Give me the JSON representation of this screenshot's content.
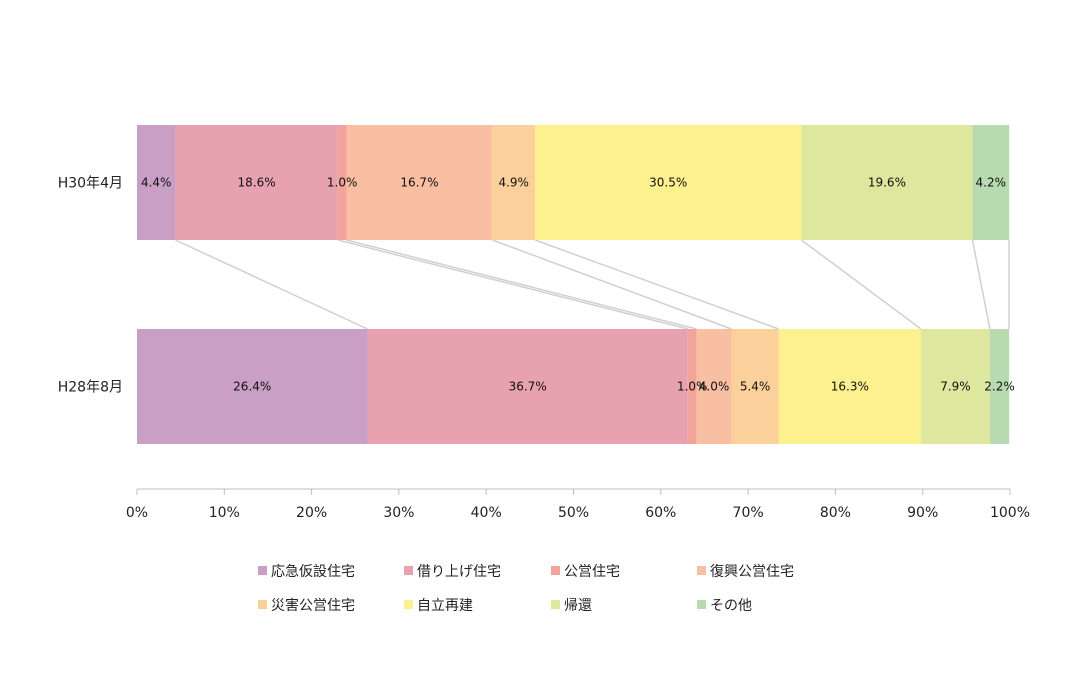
{
  "chart_data": {
    "type": "bar",
    "orientation": "horizontal",
    "stacked": "percent",
    "categories": [
      "H30年4月",
      "H28年8月"
    ],
    "series": [
      {
        "name": "応急仮設住宅",
        "color": "#c99fc6",
        "values": [
          4.4,
          26.4
        ]
      },
      {
        "name": "借り上げ住宅",
        "color": "#e8a1ae",
        "values": [
          18.6,
          36.7
        ]
      },
      {
        "name": "公営住宅",
        "color": "#f2a39b",
        "values": [
          1.0,
          1.0
        ]
      },
      {
        "name": "復興公営住宅",
        "color": "#f9bfa3",
        "values": [
          16.7,
          4.0
        ]
      },
      {
        "name": "災害公営住宅",
        "color": "#fbd09b",
        "values": [
          4.9,
          5.4
        ]
      },
      {
        "name": "自立再建",
        "color": "#fdf08f",
        "values": [
          30.5,
          16.3
        ]
      },
      {
        "name": "帰還",
        "color": "#dde79d",
        "values": [
          19.6,
          7.9
        ]
      },
      {
        "name": "その他",
        "color": "#b8dab0",
        "values": [
          4.2,
          2.2
        ]
      }
    ],
    "data_labels": [
      [
        "4.4%",
        "18.6%",
        "1.0%",
        "16.7%",
        "4.9%",
        "30.5%",
        "19.6%",
        "4.2%"
      ],
      [
        "26.4%",
        "36.7%",
        "1.0%",
        "4.0%",
        "5.4%",
        "16.3%",
        "7.9%",
        "2.2%"
      ]
    ],
    "x_ticks": [
      "0%",
      "10%",
      "20%",
      "30%",
      "40%",
      "50%",
      "60%",
      "70%",
      "80%",
      "90%",
      "100%"
    ],
    "xlim": [
      0,
      100
    ],
    "series_lines": true,
    "grid": false,
    "legend_position": "bottom"
  }
}
